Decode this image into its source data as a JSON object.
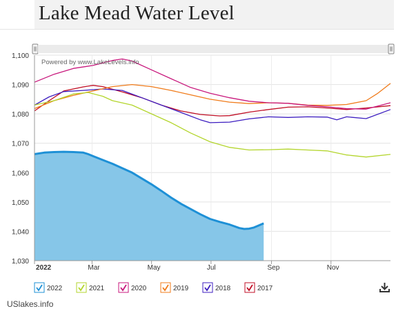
{
  "page": {
    "title": "Lake Mead Water Level",
    "source": "USlakes.info"
  },
  "chart_data": {
    "type": "line",
    "credit": "Powered by www.LakeLevels.info",
    "ylim": [
      1030,
      1100
    ],
    "yticks": [
      1030,
      1040,
      1050,
      1060,
      1070,
      1080,
      1090,
      1100
    ],
    "ytick_labels": [
      "1,030",
      "1,040",
      "1,050",
      "1,060",
      "1,070",
      "1,080",
      "1,090",
      "1,100"
    ],
    "xlim": [
      0,
      365
    ],
    "xticks": [
      {
        "day": 0,
        "label": "2022",
        "bold": true
      },
      {
        "day": 59,
        "label": "Mar",
        "bold": false
      },
      {
        "day": 120,
        "label": "May",
        "bold": false
      },
      {
        "day": 181,
        "label": "Jul",
        "bold": false
      },
      {
        "day": 243,
        "label": "Sep",
        "bold": false
      },
      {
        "day": 304,
        "label": "Nov",
        "bold": false
      }
    ],
    "grid": true,
    "legend_position": "bottom",
    "series": [
      {
        "name": "2022",
        "color": "#1e90d6",
        "fill": "#86c6e8",
        "area": true,
        "points": [
          [
            0,
            1066.3
          ],
          [
            10,
            1066.8
          ],
          [
            20,
            1067.0
          ],
          [
            30,
            1067.1
          ],
          [
            40,
            1067.0
          ],
          [
            50,
            1066.8
          ],
          [
            55,
            1066.3
          ],
          [
            60,
            1065.6
          ],
          [
            70,
            1064.3
          ],
          [
            80,
            1063.0
          ],
          [
            90,
            1061.5
          ],
          [
            100,
            1060.0
          ],
          [
            110,
            1058.0
          ],
          [
            120,
            1056.0
          ],
          [
            130,
            1053.8
          ],
          [
            140,
            1051.5
          ],
          [
            150,
            1049.4
          ],
          [
            160,
            1047.6
          ],
          [
            170,
            1045.8
          ],
          [
            180,
            1044.2
          ],
          [
            190,
            1043.2
          ],
          [
            200,
            1042.3
          ],
          [
            210,
            1041.1
          ],
          [
            215,
            1040.8
          ],
          [
            220,
            1040.9
          ],
          [
            225,
            1041.3
          ],
          [
            230,
            1042.0
          ],
          [
            235,
            1042.7
          ]
        ]
      },
      {
        "name": "2021",
        "color": "#b3d52c",
        "area": false,
        "points": [
          [
            0,
            1083.0
          ],
          [
            20,
            1084.5
          ],
          [
            40,
            1086.8
          ],
          [
            55,
            1087.3
          ],
          [
            70,
            1086.0
          ],
          [
            80,
            1084.5
          ],
          [
            100,
            1083.0
          ],
          [
            120,
            1080.0
          ],
          [
            140,
            1077.0
          ],
          [
            160,
            1073.5
          ],
          [
            180,
            1070.5
          ],
          [
            200,
            1068.6
          ],
          [
            220,
            1067.7
          ],
          [
            240,
            1067.8
          ],
          [
            260,
            1068.0
          ],
          [
            280,
            1067.7
          ],
          [
            300,
            1067.4
          ],
          [
            320,
            1066.0
          ],
          [
            340,
            1065.3
          ],
          [
            365,
            1066.2
          ]
        ]
      },
      {
        "name": "2020",
        "color": "#c8177c",
        "area": false,
        "points": [
          [
            0,
            1090.8
          ],
          [
            20,
            1093.5
          ],
          [
            40,
            1095.5
          ],
          [
            60,
            1096.5
          ],
          [
            80,
            1098.2
          ],
          [
            90,
            1098.7
          ],
          [
            100,
            1098.0
          ],
          [
            120,
            1095.0
          ],
          [
            140,
            1092.0
          ],
          [
            160,
            1089.0
          ],
          [
            180,
            1087.0
          ],
          [
            200,
            1085.5
          ],
          [
            220,
            1084.3
          ],
          [
            240,
            1083.8
          ],
          [
            260,
            1083.6
          ],
          [
            280,
            1082.9
          ],
          [
            300,
            1082.4
          ],
          [
            320,
            1081.8
          ],
          [
            340,
            1081.6
          ],
          [
            365,
            1083.8
          ]
        ]
      },
      {
        "name": "2019",
        "color": "#f07b1a",
        "area": false,
        "points": [
          [
            0,
            1081.8
          ],
          [
            20,
            1084.5
          ],
          [
            40,
            1086.3
          ],
          [
            60,
            1087.8
          ],
          [
            80,
            1089.3
          ],
          [
            100,
            1090.0
          ],
          [
            120,
            1089.3
          ],
          [
            140,
            1088.0
          ],
          [
            160,
            1086.5
          ],
          [
            180,
            1085.0
          ],
          [
            200,
            1084.0
          ],
          [
            220,
            1083.5
          ],
          [
            240,
            1083.8
          ],
          [
            260,
            1083.6
          ],
          [
            280,
            1083.0
          ],
          [
            300,
            1082.9
          ],
          [
            320,
            1083.2
          ],
          [
            340,
            1084.5
          ],
          [
            352,
            1087.0
          ],
          [
            365,
            1090.4
          ]
        ]
      },
      {
        "name": "2018",
        "color": "#3c1dc0",
        "area": false,
        "points": [
          [
            0,
            1083.0
          ],
          [
            15,
            1085.8
          ],
          [
            30,
            1087.6
          ],
          [
            50,
            1088.0
          ],
          [
            70,
            1088.5
          ],
          [
            90,
            1088.0
          ],
          [
            110,
            1085.5
          ],
          [
            130,
            1083.0
          ],
          [
            150,
            1080.5
          ],
          [
            170,
            1078.0
          ],
          [
            180,
            1077.0
          ],
          [
            200,
            1077.2
          ],
          [
            220,
            1078.3
          ],
          [
            240,
            1079.0
          ],
          [
            260,
            1078.8
          ],
          [
            280,
            1079.0
          ],
          [
            300,
            1078.9
          ],
          [
            310,
            1078.0
          ],
          [
            320,
            1079.0
          ],
          [
            340,
            1078.4
          ],
          [
            365,
            1081.5
          ]
        ]
      },
      {
        "name": "2017",
        "color": "#c00d24",
        "area": false,
        "points": [
          [
            0,
            1081.0
          ],
          [
            15,
            1084.5
          ],
          [
            30,
            1087.8
          ],
          [
            50,
            1089.2
          ],
          [
            60,
            1089.7
          ],
          [
            70,
            1089.3
          ],
          [
            90,
            1087.5
          ],
          [
            110,
            1085.5
          ],
          [
            130,
            1083.0
          ],
          [
            150,
            1081.0
          ],
          [
            170,
            1079.8
          ],
          [
            190,
            1079.3
          ],
          [
            200,
            1079.4
          ],
          [
            220,
            1080.6
          ],
          [
            240,
            1081.5
          ],
          [
            260,
            1082.3
          ],
          [
            280,
            1082.4
          ],
          [
            300,
            1082.0
          ],
          [
            320,
            1081.5
          ],
          [
            340,
            1082.0
          ],
          [
            365,
            1082.8
          ]
        ]
      }
    ]
  }
}
